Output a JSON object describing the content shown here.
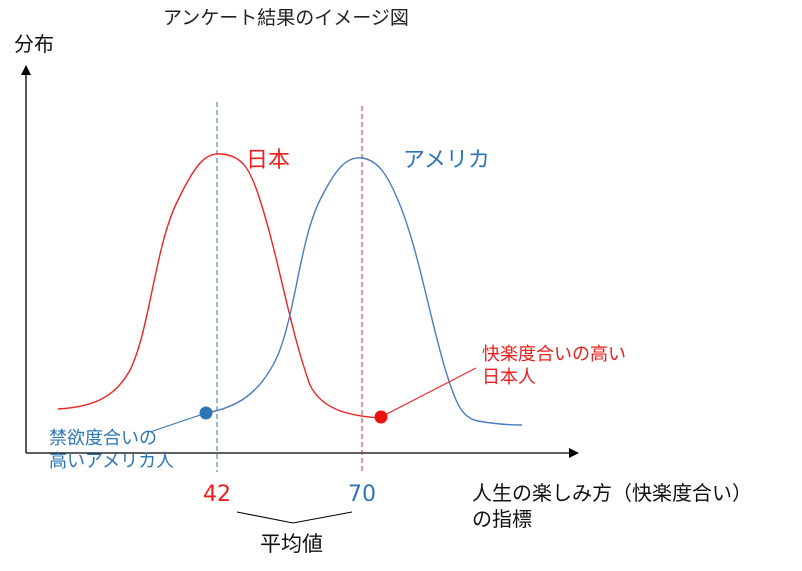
{
  "title": "アンケート結果のイメージ図",
  "y_axis_label": "分布",
  "x_axis_label_line1": "人生の楽しみ方（快楽度合い）",
  "x_axis_label_line2": "の指標",
  "series": [
    {
      "name": "日本",
      "mean": 42,
      "color": "#ee1c1c"
    },
    {
      "name": "アメリカ",
      "mean": 70,
      "color": "#2e75b6"
    }
  ],
  "annotations": {
    "red_line1": "快楽度合いの高い",
    "red_line2": "日本人",
    "blue_line1": "禁欲度合いの",
    "blue_line2": "高いアメリカ人"
  },
  "mean_ticks": {
    "japan": "42",
    "america": "70"
  },
  "mean_label": "平均値"
}
